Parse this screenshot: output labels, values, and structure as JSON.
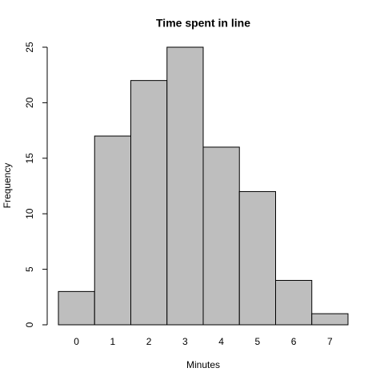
{
  "chart_data": {
    "type": "bar",
    "title": "Time spent in line",
    "x_label": "Minutes",
    "y_label": "Frequency",
    "categories": [
      "0",
      "1",
      "2",
      "3",
      "4",
      "5",
      "6",
      "7"
    ],
    "values": [
      3,
      17,
      22,
      25,
      16,
      12,
      4,
      1
    ],
    "color": "#bebebe",
    "ylim": [
      0,
      25
    ],
    "yticks": [
      0,
      5,
      10,
      15,
      20,
      25
    ]
  }
}
